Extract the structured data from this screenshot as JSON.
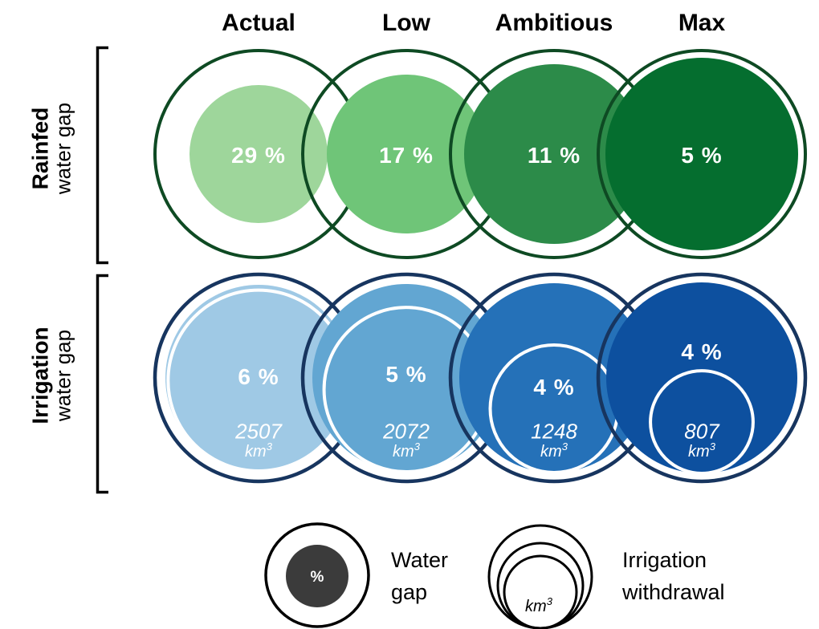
{
  "columns": [
    "Actual",
    "Low",
    "Ambitious",
    "Max"
  ],
  "rows": {
    "rainfed": {
      "title": "Rainfed",
      "subtitle": "water gap",
      "percent_labels": [
        "29 %",
        "17 %",
        "11 %",
        "5 %"
      ]
    },
    "irrigation": {
      "title": "Irrigation",
      "subtitle": "water gap",
      "percent_labels": [
        "6 %",
        "5 %",
        "4 %",
        "4 %"
      ],
      "withdrawal_values": [
        "2507",
        "2072",
        "1248",
        "807"
      ],
      "withdrawal_unit": "km",
      "withdrawal_unit_sup": "3"
    }
  },
  "legend": {
    "water_gap": {
      "symbol": "%",
      "label": "Water gap"
    },
    "irrigation_withdrawal": {
      "symbol": "km",
      "symbol_sup": "3",
      "label": "Irrigation withdrawal"
    }
  },
  "colors": {
    "rainfed_fills": [
      "#9ed69b",
      "#6fc578",
      "#2c8b49",
      "#056e2f"
    ],
    "rainfed_outline": "#0e4a23",
    "irrigation_fills": [
      "#9fc9e5",
      "#62a6d2",
      "#2571b8",
      "#0d509f"
    ],
    "irrigation_outline": "#17355f",
    "withdrawal_stroke": "#ffffff",
    "legend_symbol_fill": "#3b3b3b",
    "bracket_color": "#000000"
  },
  "chart_data": {
    "type": "nested-circles",
    "columns": [
      "Actual",
      "Low",
      "Ambitious",
      "Max"
    ],
    "series": [
      {
        "name": "Rainfed water gap",
        "unit": "%",
        "values": [
          29,
          17,
          11,
          5
        ]
      },
      {
        "name": "Irrigation water gap",
        "unit": "%",
        "values": [
          6,
          5,
          4,
          4
        ]
      },
      {
        "name": "Irrigation withdrawal",
        "unit": "km3",
        "values": [
          2507,
          2072,
          1248,
          807
        ]
      }
    ],
    "legend": [
      "Water gap",
      "Irrigation withdrawal"
    ],
    "layout_hint": "Two rows of four overlapping scenario circles. Each scenario: outlined outer ring; filled inner circle = water gap percent (rainfed greens / irrigation blues, darker left to right); irrigation row adds white-outlined bottom-tangent circle whose area scales with withdrawal volume in km3."
  }
}
